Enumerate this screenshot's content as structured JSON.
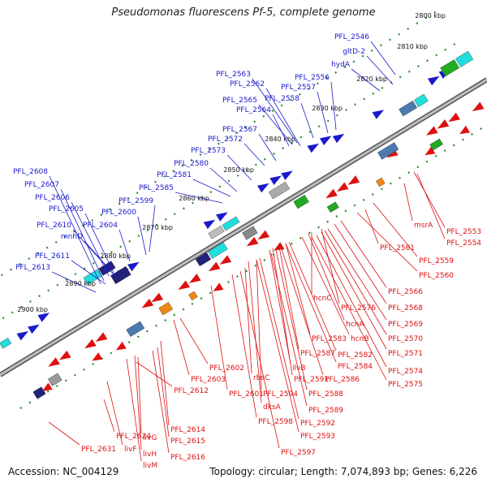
{
  "title": "Pseudomonas fluorescens Pf-5, complete genome",
  "footer": {
    "accession": "Accession: NC_004129",
    "topology": "Topology: circular; Length: 7,074,893 bp; Genes: 6,226"
  },
  "colors": {
    "forward": "#1a1acc",
    "reverse": "#dd1111",
    "backbone": "#8a8a8a",
    "tick": "#2a8a2a",
    "cyan": "#22dddd",
    "navy": "#22227a",
    "green": "#22aa22",
    "orange": "#ee8811",
    "steel": "#4a7ab0"
  },
  "ticks": [
    "2800 kbp",
    "2810 kbp",
    "2820 kbp",
    "2830 kbp",
    "2840 kbp",
    "2850 kbp",
    "2860 kbp",
    "2870 kbp",
    "2880 kbp",
    "2890 kbp",
    "2900 kbp"
  ],
  "forward_labels": [
    "PFL_2546",
    "gltD-2",
    "hydA",
    "PFL_2556",
    "PFL_2563",
    "PFL_2562",
    "PFL_2557",
    "PFL_2565",
    "PFL_2558",
    "PFL_2564",
    "PFL_2567",
    "PFL_2572",
    "PFL_2573",
    "PFL_2580",
    "PFL_2581",
    "PFL_2585",
    "PFL_2599",
    "PFL_2600",
    "PFL_2604",
    "PFL_2605",
    "PFL_2606",
    "PFL_2607",
    "PFL_2608",
    "PFL_2610",
    "mnhD",
    "PFL_2611",
    "PFL_2613"
  ],
  "reverse_labels": [
    "msrA",
    "PFL_2553",
    "PFL_2554",
    "PFL_2561",
    "PFL_2559",
    "PFL_2560",
    "PFL_2566",
    "hcnC",
    "PFL_2576",
    "PFL_2568",
    "hcnA",
    "PFL_2569",
    "hcnB",
    "PFL_2570",
    "PFL_2583",
    "PFL_2571",
    "PFL_2587",
    "PFL_2582",
    "PFL_2584",
    "PFL_2574",
    "ilvB",
    "PFL_2586",
    "PFL_2575",
    "PFL_2602",
    "rbsC",
    "PFL_2591",
    "PFL_2603",
    "PFL_2588",
    "PFL_2594",
    "PFL_2612",
    "PFL_2601",
    "dksA",
    "PFL_2589",
    "PFL_2598",
    "PFL_2592",
    "PFL_2593",
    "PFL_2614",
    "PFL_2624",
    "livG",
    "PFL_2615",
    "PFL_2631",
    "livF",
    "livH",
    "PFL_2616",
    "livM",
    "PFL_2597"
  ]
}
